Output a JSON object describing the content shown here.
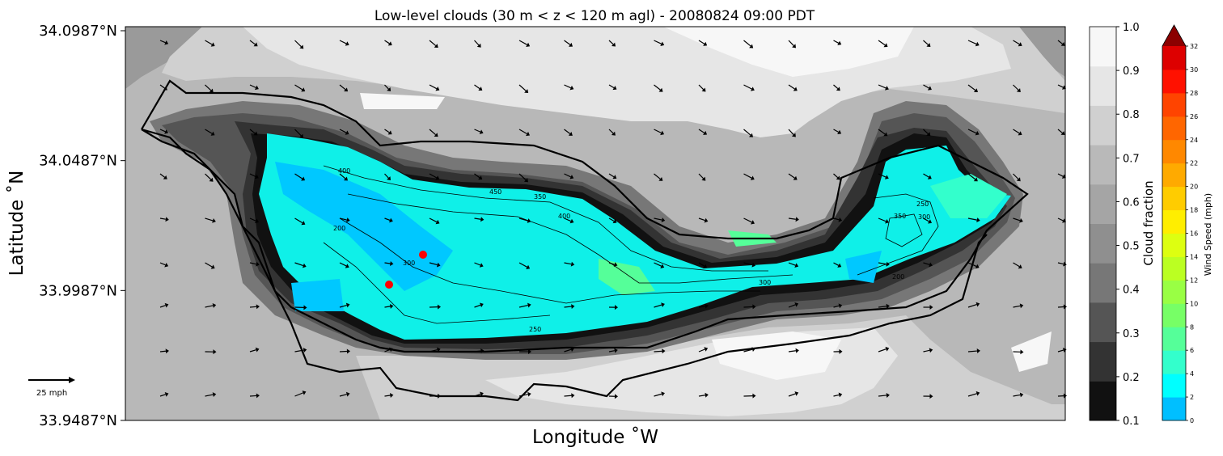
{
  "chart_data": {
    "type": "heatmap",
    "title": "Low-level clouds (30 m < z < 120 m agl) - 20080824 09:00 PDT",
    "xlabel": "Longitude $^\\circ$W",
    "ylabel": "Latitude $^\\circ$N",
    "ylabel_display": "Latitude ˚N",
    "xlabel_display": "Longitude ˚W",
    "y_ticks": [
      "34.0987°N",
      "34.0487°N",
      "33.9987°N",
      "33.9487°N"
    ],
    "y_tick_values": [
      34.0987,
      34.0487,
      33.9987,
      33.9487
    ],
    "ylim": [
      33.9487,
      34.0987
    ],
    "contour_labels": [
      "400",
      "450",
      "350",
      "400",
      "200",
      "300",
      "250",
      "250",
      "350",
      "300",
      "300",
      "200"
    ],
    "markers": {
      "color": "#ff0000",
      "count": 2
    },
    "wind_reference": {
      "label": "25 mph"
    },
    "cloud_colorbar": {
      "label": "Cloud fraction",
      "ticks": [
        "1.0",
        "0.9",
        "0.8",
        "0.7",
        "0.6",
        "0.5",
        "0.4",
        "0.3",
        "0.2",
        "0.1"
      ],
      "levels": [
        0.1,
        0.2,
        0.3,
        0.4,
        0.5,
        0.6,
        0.7,
        0.8,
        0.9,
        1.0
      ],
      "colors": [
        "#111111",
        "#333333",
        "#555555",
        "#777777",
        "#8f8f8f",
        "#a5a5a5",
        "#b9b9b9",
        "#d0d0d0",
        "#e6e6e6",
        "#f7f7f7"
      ]
    },
    "wind_colorbar": {
      "label": "Wind Speed (mph)",
      "ticks": [
        "32",
        "30",
        "28",
        "26",
        "24",
        "22",
        "20",
        "18",
        "16",
        "14",
        "12",
        "10",
        "8",
        "6",
        "4",
        "2",
        "0"
      ],
      "levels": [
        0,
        2,
        4,
        6,
        8,
        10,
        12,
        14,
        16,
        18,
        20,
        22,
        24,
        26,
        28,
        30,
        32
      ],
      "colors": [
        "#00bfff",
        "#00ffff",
        "#33ffcc",
        "#55ff99",
        "#77ff66",
        "#99ff44",
        "#bbff22",
        "#ddff11",
        "#ffee00",
        "#ffcc00",
        "#ffaa00",
        "#ff8800",
        "#ff6600",
        "#ff4400",
        "#ff1100",
        "#dd0000",
        "#990000"
      ],
      "extend_color": "#8b0000"
    }
  }
}
